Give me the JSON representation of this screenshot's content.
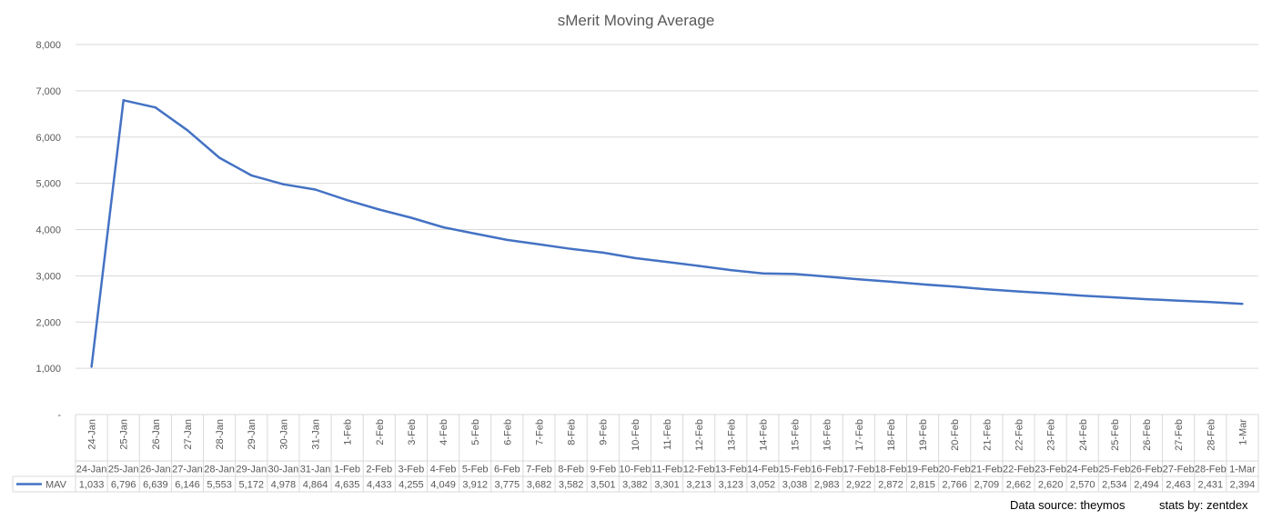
{
  "chart_data": {
    "type": "line",
    "title": "sMerit Moving Average",
    "xlabel": "",
    "ylabel": "",
    "ylim": [
      0,
      8000
    ],
    "yticks": [
      "-",
      "1,000",
      "2,000",
      "3,000",
      "4,000",
      "5,000",
      "6,000",
      "7,000",
      "8,000"
    ],
    "grid": true,
    "legend": "data-table",
    "categories": [
      "24-Jan",
      "25-Jan",
      "26-Jan",
      "27-Jan",
      "28-Jan",
      "29-Jan",
      "30-Jan",
      "31-Jan",
      "1-Feb",
      "2-Feb",
      "3-Feb",
      "4-Feb",
      "5-Feb",
      "6-Feb",
      "7-Feb",
      "8-Feb",
      "9-Feb",
      "10-Feb",
      "11-Feb",
      "12-Feb",
      "13-Feb",
      "14-Feb",
      "15-Feb",
      "16-Feb",
      "17-Feb",
      "18-Feb",
      "19-Feb",
      "20-Feb",
      "21-Feb",
      "22-Feb",
      "23-Feb",
      "24-Feb",
      "25-Feb",
      "26-Feb",
      "27-Feb",
      "28-Feb",
      "1-Mar"
    ],
    "series": [
      {
        "name": "MAV",
        "color": "#4472C4",
        "values": [
          1033,
          6796,
          6639,
          6146,
          5553,
          5172,
          4978,
          4864,
          4635,
          4433,
          4255,
          4049,
          3912,
          3775,
          3682,
          3582,
          3501,
          3382,
          3301,
          3213,
          3123,
          3052,
          3038,
          2983,
          2922,
          2872,
          2815,
          2766,
          2709,
          2662,
          2620,
          2570,
          2534,
          2494,
          2463,
          2431,
          2394
        ],
        "labels": [
          "1,033",
          "6,796",
          "6,639",
          "6,146",
          "5,553",
          "5,172",
          "4,978",
          "4,864",
          "4,635",
          "4,433",
          "4,255",
          "4,049",
          "3,912",
          "3,775",
          "3,682",
          "3,582",
          "3,501",
          "3,382",
          "3,301",
          "3,213",
          "3,123",
          "3,052",
          "3,038",
          "2,983",
          "2,922",
          "2,872",
          "2,815",
          "2,766",
          "2,709",
          "2,662",
          "2,620",
          "2,570",
          "2,534",
          "2,494",
          "2,463",
          "2,431",
          "2,394"
        ]
      }
    ]
  },
  "footer": {
    "source": "Data source: theymos",
    "stats": "stats by: zentdex"
  }
}
